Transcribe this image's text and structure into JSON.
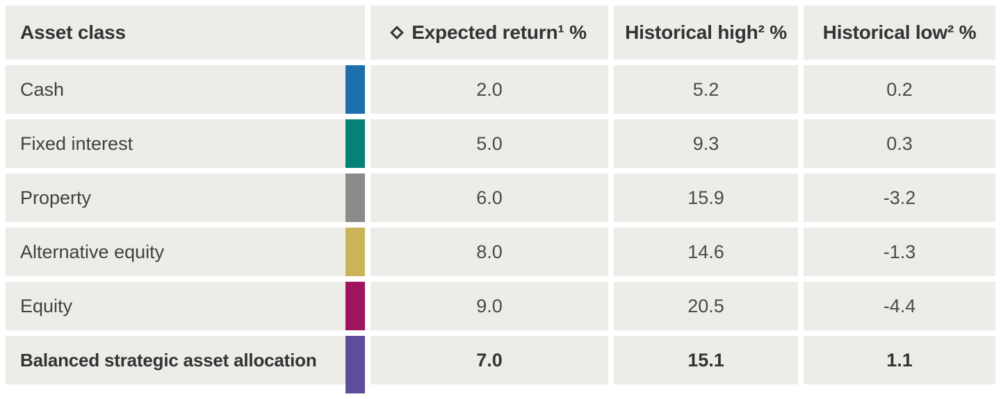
{
  "chart_data": {
    "type": "table",
    "columns": [
      "Asset class",
      "Expected return¹ %",
      "Historical high² %",
      "Historical low² %"
    ],
    "rows": [
      {
        "label": "Cash",
        "color": "#1d6fad",
        "expected": "2.0",
        "high": "5.2",
        "low": "0.2"
      },
      {
        "label": "Fixed interest",
        "color": "#068175",
        "expected": "5.0",
        "high": "9.3",
        "low": "0.3"
      },
      {
        "label": "Property",
        "color": "#8b8b89",
        "expected": "6.0",
        "high": "15.9",
        "low": "-3.2"
      },
      {
        "label": "Alternative equity",
        "color": "#c9b45a",
        "expected": "8.0",
        "high": "14.6",
        "low": "-1.3"
      },
      {
        "label": "Equity",
        "color": "#9f145e",
        "expected": "9.0",
        "high": "20.5",
        "low": "-4.4"
      },
      {
        "label": "Balanced strategic asset allocation",
        "color": "#5e4d9b",
        "expected": "7.0",
        "high": "15.1",
        "low": "1.1"
      }
    ],
    "legend_position": "none",
    "grid": false
  },
  "icons": {
    "expected_return_header_icon": "diamond-outline"
  },
  "colors": {
    "page_background": "#ffffff",
    "cell_background": "#edece9",
    "header_text": "#333333",
    "body_text": "#414141"
  }
}
